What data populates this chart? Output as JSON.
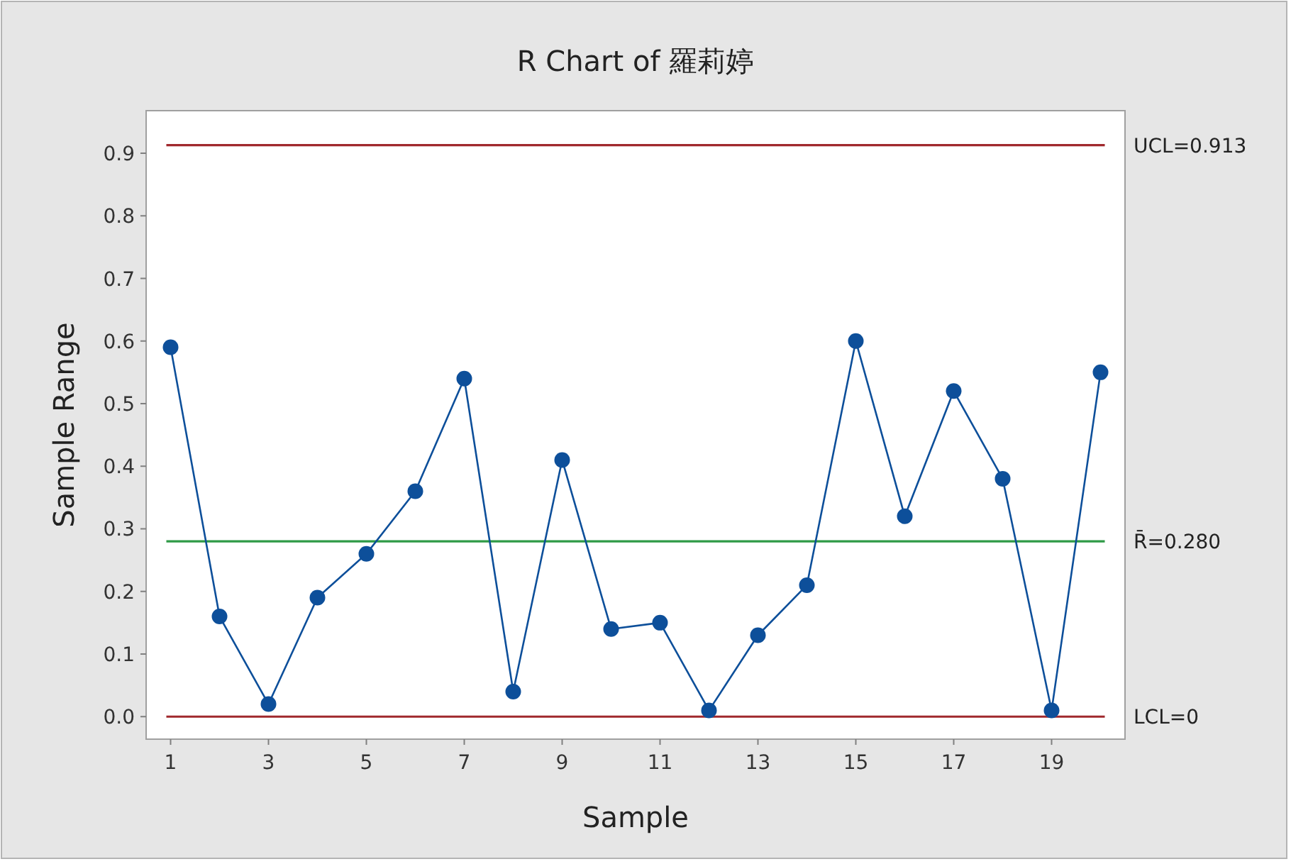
{
  "chart_data": {
    "type": "line",
    "title": "R Chart of 羅莉婷",
    "xlabel": "Sample",
    "ylabel": "Sample Range",
    "x": [
      1,
      2,
      3,
      4,
      5,
      6,
      7,
      8,
      9,
      10,
      11,
      12,
      13,
      14,
      15,
      16,
      17,
      18,
      19,
      20
    ],
    "series": [
      {
        "color": "#0d4f9a",
        "values": [
          0.59,
          0.16,
          0.02,
          0.19,
          0.26,
          0.36,
          0.54,
          0.04,
          0.41,
          0.14,
          0.15,
          0.01,
          0.13,
          0.21,
          0.6,
          0.32,
          0.52,
          0.38,
          0.01,
          0.55
        ]
      }
    ],
    "marker": "circle",
    "line_style": "solid",
    "grid": false,
    "xlim": [
      0.5,
      20.5
    ],
    "ylim": [
      -0.036,
      0.968
    ],
    "xticks": [
      1,
      3,
      5,
      7,
      9,
      11,
      13,
      15,
      17,
      19
    ],
    "yticks": [
      {
        "value": 0,
        "label": "0.0"
      },
      0.1,
      0.2,
      0.3,
      0.4,
      0.5,
      0.6,
      0.7,
      0.8,
      0.9
    ],
    "ref_lines": [
      {
        "axis": "y",
        "value": 0.913,
        "label": "UCL=0.913",
        "color": "#a0282d"
      },
      {
        "axis": "y",
        "value": 0.28,
        "label": "R̄=0.280",
        "color": "#2e9a46"
      },
      {
        "axis": "y",
        "value": 0,
        "label": "LCL=0",
        "color": "#a0282d"
      }
    ]
  }
}
